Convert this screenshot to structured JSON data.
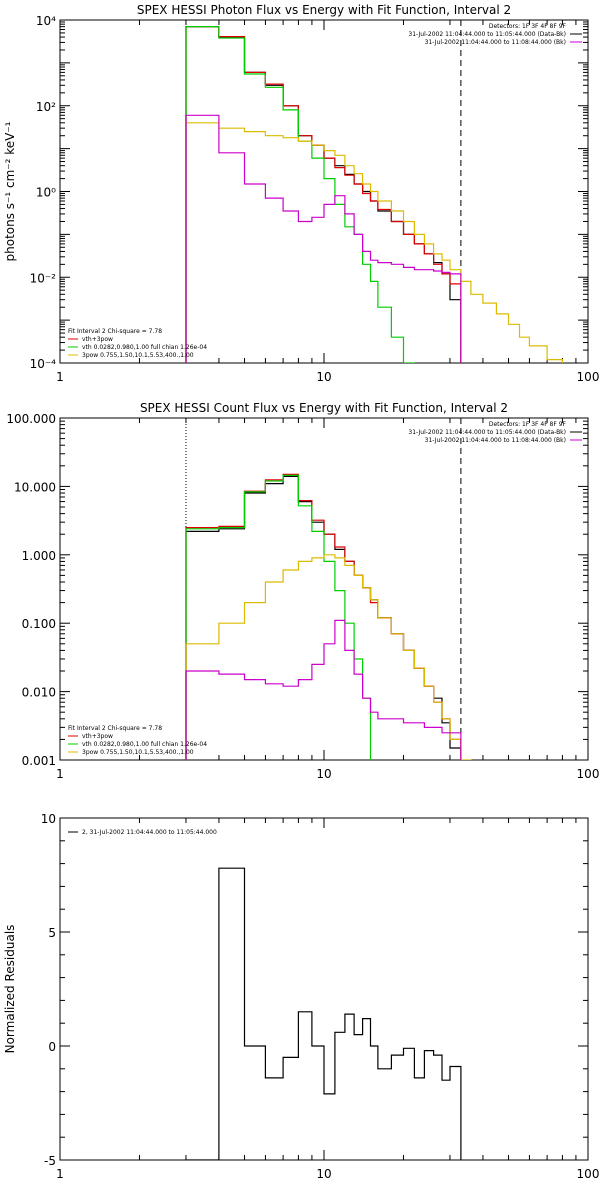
{
  "chart_data": [
    {
      "type": "line",
      "title": "SPEX HESSI Photon Flux vs Energy with Fit Function, Interval 2",
      "ylabel": "photons s⁻¹ cm⁻² keV⁻¹",
      "xlabel": "",
      "xscale": "log",
      "yscale": "log",
      "xlim": [
        1,
        100
      ],
      "ylim": [
        0.0001,
        10000
      ],
      "xticklabels": [
        "1",
        "10",
        "100"
      ],
      "yticklabels": [
        "10⁻⁴",
        "10⁻²",
        "10⁰",
        "10²",
        "10⁴"
      ],
      "legend_topright": [
        "Detectors: 1F 3F 4F 8F 9F",
        "31-Jul-2002 11:04:44.000 to 11:05:44.000 (Data-Bk)",
        "31-Jul-2002 11:04:44.000 to 11:08:44.000 (Bk)"
      ],
      "fit_title": "Fit Interval 2   Chi-square = 7.78",
      "legend_bottomleft": [
        "vth+3pow",
        "vth 0.0282,0.980,1.00  full chian 1.26e-04",
        "3pow 0.755,1.50,10.1,5.53,400.,1.00"
      ],
      "vlines": [
        3.0,
        33.0
      ],
      "series": [
        {
          "name": "(Data-Bk)",
          "color": "#000000",
          "edges": [
            3.0,
            4.0,
            5.0,
            6.0,
            7.0,
            8.0,
            9.0,
            10.0,
            11.0,
            12.0,
            13.0,
            14.0,
            15.0,
            16.0,
            18.0,
            20.0,
            22.0,
            24.0,
            26.0,
            28.0,
            30.0,
            33.0
          ],
          "values": [
            7000,
            4000,
            600,
            300,
            100,
            20,
            12,
            6,
            4,
            2.5,
            1.5,
            1,
            0.6,
            0.35,
            0.2,
            0.1,
            0.06,
            0.035,
            0.022,
            0.012,
            0.003
          ]
        },
        {
          "name": "vth+3pow",
          "color": "#dd0000",
          "edges": [
            3.0,
            4.0,
            5.0,
            6.0,
            7.0,
            8.0,
            9.0,
            10.0,
            11.0,
            12.0,
            13.0,
            14.0,
            15.0,
            16.0,
            18.0,
            20.0,
            22.0,
            24.0,
            26.0,
            28.0,
            30.0,
            33.0
          ],
          "values": [
            7000,
            4100,
            600,
            320,
            100,
            20,
            12,
            6,
            3.6,
            2.4,
            1.5,
            0.9,
            0.6,
            0.38,
            0.2,
            0.1,
            0.06,
            0.035,
            0.02,
            0.012,
            0.007
          ]
        },
        {
          "name": "vth 0.0282,0.980,1.00  full chian 1.26e-04",
          "color": "#00cc00",
          "edges": [
            3.0,
            4.0,
            5.0,
            6.0,
            7.0,
            8.0,
            9.0,
            10.0,
            11.0,
            12.0,
            13.0,
            14.0,
            15.0,
            16.0,
            18.0,
            20.0,
            22.0
          ],
          "values": [
            7000,
            3800,
            550,
            270,
            80,
            15,
            6,
            2,
            0.5,
            0.15,
            0.1,
            0.02,
            0.008,
            0.002,
            0.0004,
            0.0001
          ]
        },
        {
          "name": "3pow 0.755,1.50,10.1,5.53,400.,1.00",
          "color": "#ddbb00",
          "edges": [
            3.0,
            4.0,
            5.0,
            6.0,
            7.0,
            8.0,
            9.0,
            10.0,
            11.0,
            12.0,
            13.0,
            14.0,
            15.0,
            16.0,
            18.0,
            20.0,
            22.0,
            24.0,
            26.0,
            28.0,
            30.0,
            33.0,
            36.0,
            40.0,
            45.0,
            50.0,
            55.0,
            60.0,
            70.0,
            80.0
          ],
          "values": [
            40,
            30,
            25,
            20,
            18,
            15,
            12,
            9,
            7,
            4,
            2.6,
            1.5,
            1.0,
            0.6,
            0.35,
            0.2,
            0.1,
            0.06,
            0.035,
            0.025,
            0.015,
            0.008,
            0.004,
            0.0025,
            0.0014,
            0.0008,
            0.0004,
            0.00025,
            0.00012
          ]
        },
        {
          "name": "(Bk)",
          "color": "#cc00cc",
          "edges": [
            3.0,
            4.0,
            5.0,
            6.0,
            7.0,
            8.0,
            9.0,
            10.0,
            11.0,
            12.0,
            13.0,
            14.0,
            15.0,
            16.0,
            18.0,
            20.0,
            22.0,
            24.0,
            26.0,
            28.0,
            30.0,
            33.0
          ],
          "values": [
            60,
            8,
            1.5,
            0.7,
            0.35,
            0.2,
            0.25,
            0.5,
            0.8,
            0.3,
            0.1,
            0.04,
            0.025,
            0.022,
            0.02,
            0.017,
            0.015,
            0.015,
            0.014,
            0.013,
            0.012
          ]
        }
      ]
    },
    {
      "type": "line",
      "title": "SPEX HESSI Count Flux vs Energy with Fit Function, Interval 2",
      "xlabel": "",
      "ylabel": "",
      "xscale": "log",
      "yscale": "log",
      "xlim": [
        1,
        100
      ],
      "ylim": [
        0.001,
        100
      ],
      "xticklabels": [
        "1",
        "10",
        "100"
      ],
      "yticklabels": [
        "0.001",
        "0.010",
        "0.100",
        "1.000",
        "10.000",
        "100.000"
      ],
      "legend_topright": [
        "Detectors: 1F 3F 4F 8F 9F",
        "31-Jul-2002 11:04:44.000 to 11:05:44.000 (Data-Bk)",
        "31-Jul-2002 11:04:44.000 to 11:08:44.000 (Bk)"
      ],
      "fit_title": "Fit Interval 2   Chi-square = 7.78",
      "legend_bottomleft": [
        "vth+3pow",
        "vth 0.0282,0.980,1.00  full chian 1.26e-04",
        "3pow 0.755,1.50,10.1,5.53,400.,1.00"
      ],
      "vlines": [
        3.0,
        33.0
      ],
      "series": [
        {
          "name": "(Data-Bk)",
          "color": "#000000",
          "edges": [
            3.0,
            4.0,
            5.0,
            6.0,
            7.0,
            8.0,
            9.0,
            10.0,
            11.0,
            12.0,
            13.0,
            14.0,
            15.0,
            16.0,
            18.0,
            20.0,
            22.0,
            24.0,
            26.0,
            28.0,
            30.0,
            33.0
          ],
          "values": [
            2.2,
            2.4,
            8.0,
            11.0,
            14.0,
            6.0,
            3.0,
            2.0,
            1.2,
            0.8,
            0.5,
            0.33,
            0.22,
            0.12,
            0.07,
            0.04,
            0.022,
            0.012,
            0.008,
            0.0035,
            0.0015
          ]
        },
        {
          "name": "vth+3pow",
          "color": "#dd0000",
          "edges": [
            3.0,
            4.0,
            5.0,
            6.0,
            7.0,
            8.0,
            9.0,
            10.0,
            11.0,
            12.0,
            13.0,
            14.0,
            15.0,
            16.0,
            18.0,
            20.0,
            22.0,
            24.0,
            26.0,
            28.0,
            30.0,
            33.0
          ],
          "values": [
            2.5,
            2.6,
            8.5,
            12.5,
            15.0,
            6.2,
            3.2,
            2.0,
            1.3,
            0.8,
            0.5,
            0.33,
            0.2,
            0.12,
            0.07,
            0.04,
            0.022,
            0.012,
            0.007,
            0.004,
            0.002
          ]
        },
        {
          "name": "vth 0.0282,0.980,1.00  full chian 1.26e-04",
          "color": "#00cc00",
          "edges": [
            3.0,
            4.0,
            5.0,
            6.0,
            7.0,
            8.0,
            9.0,
            10.0,
            11.0,
            12.0,
            13.0,
            14.0,
            15.0
          ],
          "values": [
            2.4,
            2.5,
            8.3,
            12.0,
            14.5,
            5.2,
            2.2,
            0.8,
            0.3,
            0.1,
            0.03,
            0.008
          ]
        },
        {
          "name": "3pow 0.755,1.50,10.1,5.53,400.,1.00",
          "color": "#ddbb00",
          "edges": [
            3.0,
            4.0,
            5.0,
            6.0,
            7.0,
            8.0,
            9.0,
            10.0,
            11.0,
            12.0,
            13.0,
            14.0,
            15.0,
            16.0,
            18.0,
            20.0,
            22.0,
            24.0,
            26.0,
            28.0,
            30.0,
            33.0,
            36.0
          ],
          "values": [
            0.05,
            0.1,
            0.2,
            0.4,
            0.6,
            0.8,
            0.9,
            1.0,
            0.9,
            0.7,
            0.5,
            0.33,
            0.22,
            0.12,
            0.07,
            0.04,
            0.022,
            0.012,
            0.007,
            0.004,
            0.002,
            0.001
          ]
        },
        {
          "name": "(Bk)",
          "color": "#cc00cc",
          "edges": [
            3.0,
            4.0,
            5.0,
            6.0,
            7.0,
            8.0,
            9.0,
            10.0,
            11.0,
            12.0,
            13.0,
            14.0,
            15.0,
            16.0,
            18.0,
            20.0,
            22.0,
            24.0,
            26.0,
            28.0,
            30.0,
            33.0
          ],
          "values": [
            0.02,
            0.018,
            0.015,
            0.013,
            0.012,
            0.015,
            0.025,
            0.05,
            0.11,
            0.04,
            0.018,
            0.008,
            0.005,
            0.004,
            0.004,
            0.0035,
            0.0035,
            0.003,
            0.003,
            0.0025,
            0.0025
          ]
        }
      ]
    },
    {
      "type": "line",
      "title": "",
      "xlabel": "",
      "ylabel": "Normalized Residuals",
      "xscale": "log",
      "yscale": "linear",
      "xlim": [
        1,
        100
      ],
      "ylim": [
        -5,
        10
      ],
      "xticklabels": [
        "1",
        "10",
        "100"
      ],
      "yticklabels": [
        "-5",
        "0",
        "5",
        "10"
      ],
      "legend": [
        "2, 31-Jul-2002 11:04:44.000 to 11:05:44.000"
      ],
      "series": [
        {
          "name": "2, 31-Jul-2002 11:04:44.000 to 11:05:44.000",
          "color": "#000000",
          "edges": [
            3.0,
            4.0,
            5.0,
            6.0,
            7.0,
            8.0,
            9.0,
            10.0,
            11.0,
            12.0,
            13.0,
            14.0,
            15.0,
            16.0,
            18.0,
            20.0,
            22.0,
            24.0,
            26.0,
            28.0,
            30.0,
            33.0
          ],
          "values": [
            -5.0,
            7.8,
            0.0,
            -1.4,
            -0.5,
            1.5,
            0.0,
            -2.1,
            0.6,
            1.4,
            0.5,
            1.2,
            0.0,
            -1.0,
            -0.4,
            -0.1,
            -1.4,
            -0.2,
            -0.4,
            -1.5,
            -0.9
          ]
        }
      ]
    }
  ]
}
